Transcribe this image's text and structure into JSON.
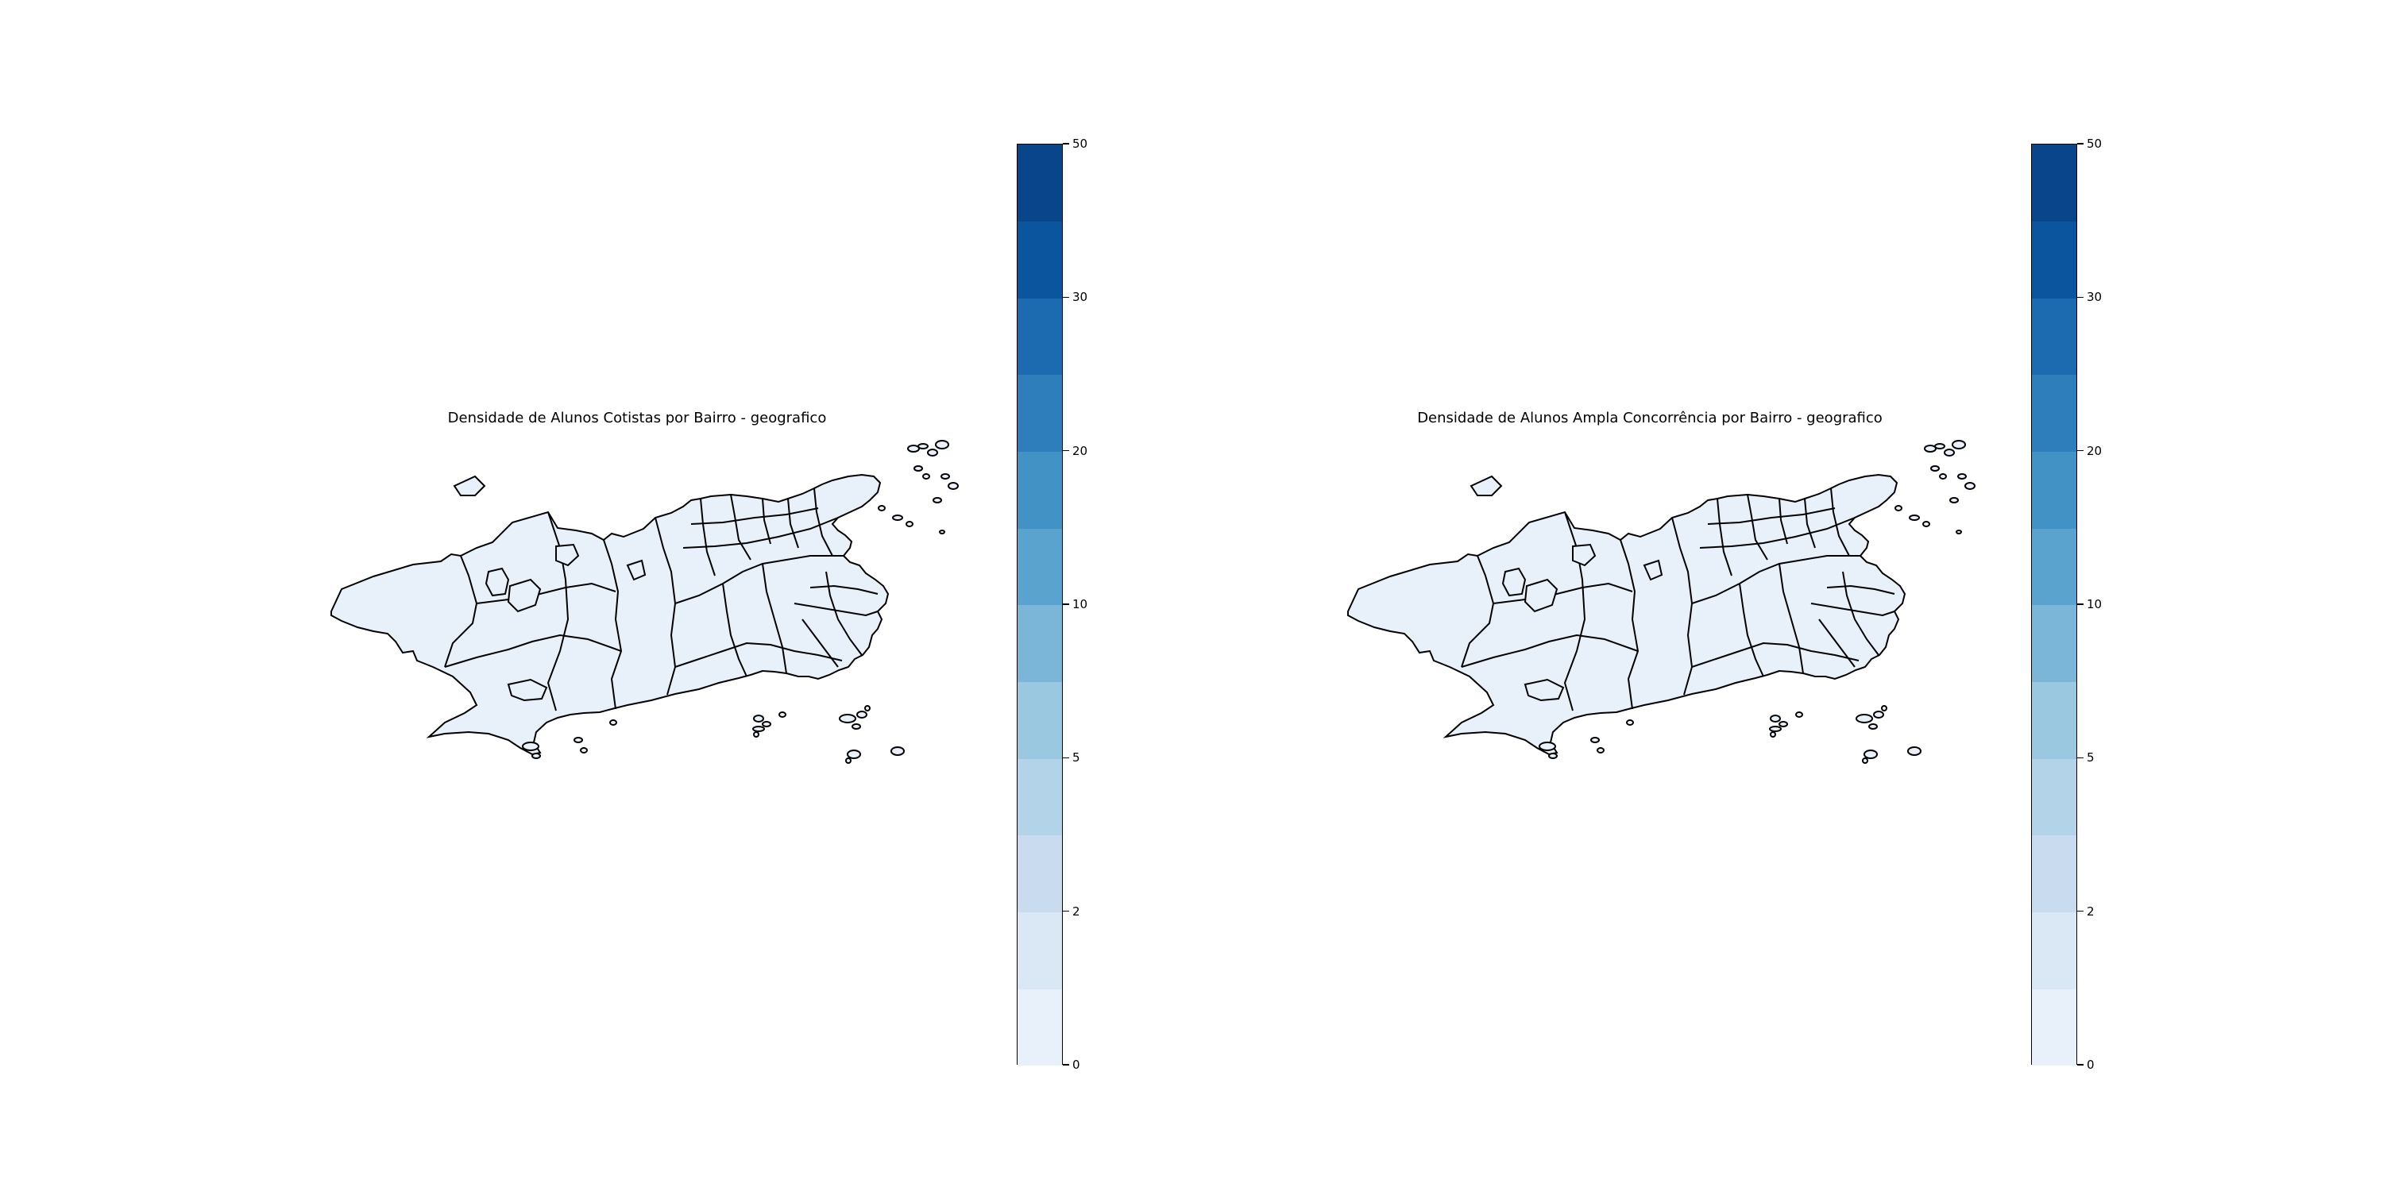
{
  "colors": {
    "region_fill": "#e8f0f9",
    "region_stroke": "#000000",
    "colorbar_steps": [
      "#e8f1fa",
      "#dae8f6",
      "#c9dcef",
      "#b3d3e8",
      "#9ac8e0",
      "#7bb6d9",
      "#5ba3cf",
      "#4292c6",
      "#2e7ebc",
      "#1c6aaf",
      "#0b559f",
      "#08458a"
    ]
  },
  "colorbar": {
    "tick_labels": [
      "0",
      "2",
      "5",
      "10",
      "20",
      "30",
      "50"
    ]
  },
  "maps": [
    {
      "title": "Densidade de Alunos Cotistas por Bairro - geografico"
    },
    {
      "title": "Densidade de Alunos Ampla Concorrência por Bairro - geografico"
    }
  ]
}
